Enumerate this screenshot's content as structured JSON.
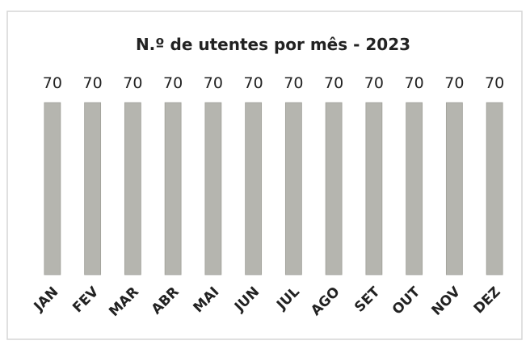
{
  "chart_data": {
    "type": "bar",
    "title": "N.º de utentes por mês - 2023",
    "categories": [
      "JAN",
      "FEV",
      "MAR",
      "ABR",
      "MAI",
      "JUN",
      "JUL",
      "AGO",
      "SET",
      "OUT",
      "NOV",
      "DEZ"
    ],
    "values": [
      70,
      70,
      70,
      70,
      70,
      70,
      70,
      70,
      70,
      70,
      70,
      70
    ],
    "color": "#b5b5af"
  }
}
